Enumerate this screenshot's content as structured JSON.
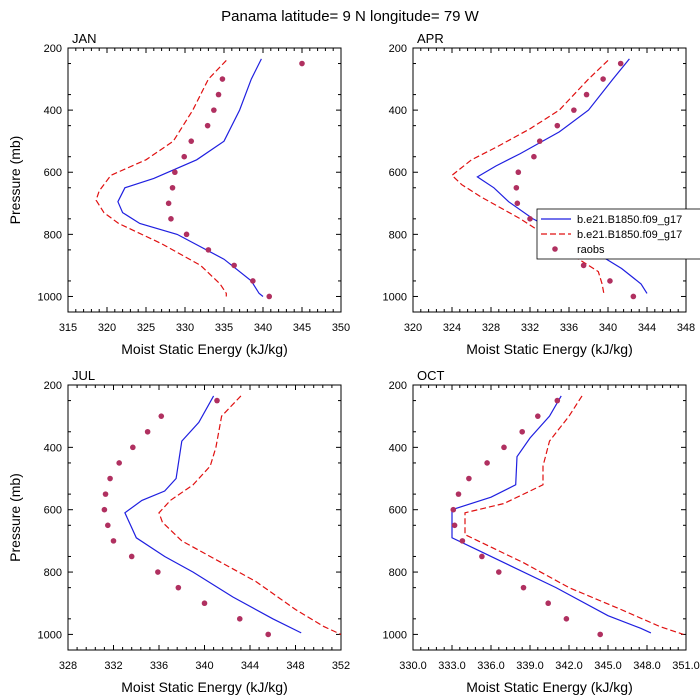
{
  "figure_title": "Panama  latitude= 9 N longitude= 79 W",
  "chart_data": [
    {
      "type": "line",
      "panel_label": "JAN",
      "xlabel": "Moist Static Energy (kJ/kg)",
      "ylabel": "Pressure (mb)",
      "xlim": [
        315,
        350
      ],
      "ylim": [
        1050,
        200
      ],
      "x_ticks": [
        "315",
        "320",
        "325",
        "330",
        "335",
        "340",
        "345",
        "350"
      ],
      "x_tick_values": [
        315,
        320,
        325,
        330,
        335,
        340,
        345,
        350
      ],
      "y_ticks": [
        "200",
        "400",
        "600",
        "800",
        "1000"
      ],
      "y_tick_values": [
        200,
        400,
        600,
        800,
        1000
      ],
      "grid": false,
      "series": [
        {
          "name": "b.e21.B1850.f09_g17",
          "style": "solid",
          "color": "#1f1fe0",
          "points": [
            [
              339.8,
              235
            ],
            [
              338.5,
              300
            ],
            [
              337.0,
              400
            ],
            [
              335.0,
              500
            ],
            [
              331.5,
              560
            ],
            [
              326.0,
              620
            ],
            [
              322.3,
              650
            ],
            [
              321.4,
              695
            ],
            [
              322.0,
              730
            ],
            [
              324.2,
              765
            ],
            [
              329.0,
              800
            ],
            [
              335.0,
              880
            ],
            [
              338.5,
              950
            ],
            [
              339.5,
              990
            ],
            [
              340.0,
              1000
            ]
          ]
        },
        {
          "name": "b.e21.B1850.f09_g17",
          "style": "dashed",
          "color": "#e01010",
          "points": [
            [
              335.3,
              240
            ],
            [
              333.0,
              300
            ],
            [
              331.0,
              400
            ],
            [
              328.5,
              500
            ],
            [
              325.0,
              560
            ],
            [
              320.5,
              610
            ],
            [
              319.0,
              660
            ],
            [
              318.6,
              690
            ],
            [
              319.6,
              730
            ],
            [
              321.5,
              765
            ],
            [
              327.0,
              830
            ],
            [
              332.0,
              900
            ],
            [
              334.5,
              960
            ],
            [
              335.3,
              990
            ],
            [
              335.3,
              1000
            ]
          ]
        },
        {
          "name": "raobs",
          "style": "dots",
          "color": "#b03060",
          "points": [
            [
              345.0,
              250
            ],
            [
              334.8,
              300
            ],
            [
              334.3,
              350
            ],
            [
              333.7,
              400
            ],
            [
              332.9,
              450
            ],
            [
              330.8,
              500
            ],
            [
              329.9,
              550
            ],
            [
              328.7,
              600
            ],
            [
              328.4,
              650
            ],
            [
              327.9,
              700
            ],
            [
              328.2,
              750
            ],
            [
              330.2,
              800
            ],
            [
              333.0,
              850
            ],
            [
              336.3,
              900
            ],
            [
              338.7,
              950
            ],
            [
              340.8,
              1000
            ]
          ]
        }
      ]
    },
    {
      "type": "line",
      "panel_label": "APR",
      "xlabel": "Moist Static Energy (kJ/kg)",
      "ylabel": "",
      "xlim": [
        320,
        348
      ],
      "ylim": [
        1050,
        200
      ],
      "x_ticks": [
        "320",
        "324",
        "328",
        "332",
        "336",
        "340",
        "344",
        "348"
      ],
      "x_tick_values": [
        320,
        324,
        328,
        332,
        336,
        340,
        344,
        348
      ],
      "y_ticks": [
        "200",
        "400",
        "600",
        "800",
        "1000"
      ],
      "y_tick_values": [
        200,
        400,
        600,
        800,
        1000
      ],
      "grid": false,
      "legend_position": "right",
      "series": [
        {
          "name": "b.e21.B1850.f09_g17",
          "style": "solid",
          "color": "#1f1fe0",
          "points": [
            [
              342.2,
              235
            ],
            [
              340.5,
              300
            ],
            [
              338.0,
              400
            ],
            [
              335.0,
              470
            ],
            [
              331.0,
              540
            ],
            [
              328.5,
              580
            ],
            [
              326.6,
              615
            ],
            [
              328.3,
              650
            ],
            [
              329.8,
              695
            ],
            [
              332.3,
              750
            ],
            [
              335.3,
              800
            ],
            [
              338.8,
              860
            ],
            [
              341.4,
              910
            ],
            [
              343.4,
              960
            ],
            [
              344.0,
              990
            ]
          ]
        },
        {
          "name": "b.e21.B1850.f09_g17",
          "style": "dashed",
          "color": "#e01010",
          "points": [
            [
              340.0,
              240
            ],
            [
              338.0,
              300
            ],
            [
              335.0,
              400
            ],
            [
              332.0,
              460
            ],
            [
              328.5,
              520
            ],
            [
              326.0,
              560
            ],
            [
              324.0,
              610
            ],
            [
              325.0,
              640
            ],
            [
              327.0,
              680
            ],
            [
              331.0,
              750
            ],
            [
              334.0,
              810
            ],
            [
              336.5,
              870
            ],
            [
              339.0,
              920
            ],
            [
              339.4,
              960
            ],
            [
              339.6,
              995
            ]
          ]
        },
        {
          "name": "raobs",
          "style": "dots",
          "color": "#b03060",
          "points": [
            [
              341.3,
              250
            ],
            [
              339.5,
              300
            ],
            [
              337.8,
              350
            ],
            [
              336.5,
              400
            ],
            [
              334.8,
              450
            ],
            [
              333.0,
              500
            ],
            [
              332.4,
              550
            ],
            [
              330.8,
              600
            ],
            [
              330.6,
              650
            ],
            [
              330.7,
              700
            ],
            [
              332.0,
              750
            ],
            [
              333.2,
              800
            ],
            [
              334.8,
              825
            ],
            [
              335.0,
              850
            ],
            [
              337.5,
              900
            ],
            [
              340.2,
              950
            ],
            [
              342.6,
              1000
            ]
          ]
        }
      ]
    },
    {
      "type": "line",
      "panel_label": "JUL",
      "xlabel": "Moist Static Energy (kJ/kg)",
      "ylabel": "Pressure (mb)",
      "xlim": [
        328,
        352
      ],
      "ylim": [
        1050,
        200
      ],
      "x_ticks": [
        "328",
        "332",
        "336",
        "340",
        "344",
        "348",
        "352"
      ],
      "x_tick_values": [
        328,
        332,
        336,
        340,
        344,
        348,
        352
      ],
      "y_ticks": [
        "200",
        "400",
        "600",
        "800",
        "1000"
      ],
      "y_tick_values": [
        200,
        400,
        600,
        800,
        1000
      ],
      "grid": false,
      "series": [
        {
          "name": "b.e21.B1850.f09_g17",
          "style": "solid",
          "color": "#1f1fe0",
          "points": [
            [
              340.8,
              235
            ],
            [
              339.5,
              320
            ],
            [
              338.0,
              380
            ],
            [
              337.5,
              500
            ],
            [
              336.5,
              540
            ],
            [
              334.5,
              570
            ],
            [
              333.0,
              610
            ],
            [
              333.5,
              650
            ],
            [
              334.0,
              690
            ],
            [
              336.5,
              750
            ],
            [
              339.0,
              800
            ],
            [
              342.5,
              880
            ],
            [
              346.0,
              950
            ],
            [
              348.5,
              995
            ]
          ]
        },
        {
          "name": "b.e21.B1850.f09_g17",
          "style": "dashed",
          "color": "#e01010",
          "points": [
            [
              343.2,
              235
            ],
            [
              341.5,
              300
            ],
            [
              341.0,
              400
            ],
            [
              340.5,
              460
            ],
            [
              339.0,
              520
            ],
            [
              337.0,
              570
            ],
            [
              336.0,
              610
            ],
            [
              336.3,
              640
            ],
            [
              338.0,
              700
            ],
            [
              341.0,
              760
            ],
            [
              344.5,
              830
            ],
            [
              348.0,
              920
            ],
            [
              350.5,
              975
            ],
            [
              352.0,
              1000
            ]
          ]
        },
        {
          "name": "raobs",
          "style": "dots",
          "color": "#b03060",
          "points": [
            [
              341.1,
              250
            ],
            [
              336.2,
              300
            ],
            [
              335.0,
              350
            ],
            [
              333.7,
              400
            ],
            [
              332.5,
              450
            ],
            [
              331.7,
              500
            ],
            [
              331.3,
              550
            ],
            [
              331.2,
              600
            ],
            [
              331.5,
              650
            ],
            [
              332.0,
              700
            ],
            [
              333.6,
              750
            ],
            [
              335.9,
              800
            ],
            [
              337.7,
              850
            ],
            [
              340.0,
              900
            ],
            [
              343.1,
              950
            ],
            [
              345.6,
              1000
            ]
          ]
        }
      ]
    },
    {
      "type": "line",
      "panel_label": "OCT",
      "xlabel": "Moist Static Energy (kJ/kg)",
      "ylabel": "",
      "xlim": [
        330,
        351
      ],
      "ylim": [
        1050,
        200
      ],
      "x_ticks": [
        "330.0",
        "333.0",
        "336.0",
        "339.0",
        "342.0",
        "345.0",
        "348.0",
        "351.0"
      ],
      "x_tick_values": [
        330,
        333,
        336,
        339,
        342,
        345,
        348,
        351
      ],
      "y_ticks": [
        "200",
        "400",
        "600",
        "800",
        "1000"
      ],
      "y_tick_values": [
        200,
        400,
        600,
        800,
        1000
      ],
      "grid": false,
      "series": [
        {
          "name": "b.e21.B1850.f09_g17",
          "style": "solid",
          "color": "#1f1fe0",
          "points": [
            [
              341.4,
              235
            ],
            [
              340.5,
              300
            ],
            [
              339.0,
              370
            ],
            [
              338.0,
              430
            ],
            [
              337.9,
              520
            ],
            [
              336.0,
              560
            ],
            [
              333.0,
              600
            ],
            [
              333.0,
              690
            ],
            [
              335.0,
              730
            ],
            [
              337.5,
              780
            ],
            [
              341.0,
              850
            ],
            [
              345.0,
              940
            ],
            [
              347.5,
              980
            ],
            [
              348.3,
              995
            ]
          ]
        },
        {
          "name": "b.e21.B1850.f09_g17",
          "style": "dashed",
          "color": "#e01010",
          "points": [
            [
              343.0,
              235
            ],
            [
              342.0,
              300
            ],
            [
              340.5,
              380
            ],
            [
              340.0,
              460
            ],
            [
              340.0,
              520
            ],
            [
              337.0,
              580
            ],
            [
              334.0,
              610
            ],
            [
              334.0,
              680
            ],
            [
              336.0,
              720
            ],
            [
              338.5,
              770
            ],
            [
              342.0,
              850
            ],
            [
              346.0,
              920
            ],
            [
              349.0,
              975
            ],
            [
              350.8,
              1000
            ]
          ]
        },
        {
          "name": "raobs",
          "style": "dots",
          "color": "#b03060",
          "points": [
            [
              341.1,
              250
            ],
            [
              339.6,
              300
            ],
            [
              338.4,
              350
            ],
            [
              337.0,
              400
            ],
            [
              335.7,
              450
            ],
            [
              334.3,
              500
            ],
            [
              333.5,
              550
            ],
            [
              333.1,
              600
            ],
            [
              333.2,
              650
            ],
            [
              333.8,
              700
            ],
            [
              335.3,
              750
            ],
            [
              336.6,
              800
            ],
            [
              338.5,
              850
            ],
            [
              340.4,
              900
            ],
            [
              341.8,
              950
            ],
            [
              344.4,
              1000
            ]
          ]
        }
      ]
    }
  ],
  "legend": {
    "entries": [
      "b.e21.B1850.f09_g17",
      "b.e21.B1850.f09_g17",
      "raobs"
    ],
    "styles": [
      "solid",
      "dashed",
      "dots"
    ],
    "colors": [
      "#1f1fe0",
      "#e01010",
      "#b03060"
    ]
  }
}
